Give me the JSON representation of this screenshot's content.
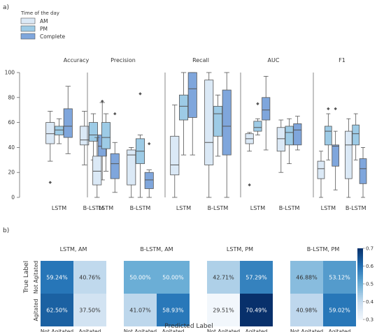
{
  "panel_labels": {
    "a": "a)",
    "b": "b)"
  },
  "legend": {
    "title": "Time of the day",
    "items": [
      {
        "label": "AM",
        "color": "#dbe9f6"
      },
      {
        "label": "PM",
        "color": "#9dcbe6"
      },
      {
        "label": "Complete",
        "color": "#7fa6dc"
      }
    ]
  },
  "chart_data": [
    {
      "type": "box",
      "ylim": [
        0,
        100
      ],
      "yticks": [
        "0",
        "20",
        "40",
        "60",
        "80",
        "100"
      ],
      "xtick_labels": [
        "LSTM",
        "B-LSTM"
      ],
      "series_names": [
        "AM",
        "PM",
        "Complete"
      ],
      "panels": [
        {
          "title": "Accuracy",
          "groups": [
            {
              "label": "LSTM",
              "boxes": [
                {
                  "min": 29,
                  "q1": 43,
                  "median": 51,
                  "q3": 60,
                  "max": 69,
                  "outliers": [
                    12
                  ]
                },
                {
                  "min": 43,
                  "q1": 50,
                  "median": 54,
                  "q3": 57,
                  "max": 63,
                  "outliers": []
                },
                {
                  "min": 35,
                  "q1": 48,
                  "median": 57,
                  "q3": 71,
                  "max": 89,
                  "outliers": []
                }
              ]
            },
            {
              "label": "B-LSTM",
              "boxes": [
                {
                  "min": 26,
                  "q1": 42,
                  "median": 46,
                  "q3": 57,
                  "max": 69,
                  "outliers": []
                },
                {
                  "min": 30,
                  "q1": 45,
                  "median": 50,
                  "q3": 60,
                  "max": 67,
                  "outliers": []
                },
                {
                  "min": 14,
                  "q1": 33,
                  "median": 41,
                  "q3": 50,
                  "max": 76,
                  "outliers": [
                    77
                  ]
                }
              ]
            }
          ]
        },
        {
          "title": "Precision",
          "groups": [
            {
              "label": "LSTM",
              "boxes": [
                {
                  "min": 0,
                  "q1": 10,
                  "median": 21,
                  "q3": 33,
                  "max": 48,
                  "outliers": []
                },
                {
                  "min": 21,
                  "q1": 39,
                  "median": 48,
                  "q3": 60,
                  "max": 67,
                  "outliers": []
                },
                {
                  "min": 4,
                  "q1": 15,
                  "median": 27,
                  "q3": 35,
                  "max": 44,
                  "outliers": [
                    67
                  ]
                }
              ]
            },
            {
              "label": "B-LSTM",
              "boxes": [
                {
                  "min": 0,
                  "q1": 10,
                  "median": 34,
                  "q3": 38,
                  "max": 40,
                  "outliers": []
                },
                {
                  "min": 0,
                  "q1": 27,
                  "median": 37,
                  "q3": 47,
                  "max": 50,
                  "outliers": [
                    83
                  ]
                },
                {
                  "min": 0,
                  "q1": 7,
                  "median": 14,
                  "q3": 20,
                  "max": 22,
                  "outliers": [
                    43
                  ]
                }
              ]
            }
          ]
        },
        {
          "title": "Recall",
          "groups": [
            {
              "label": "LSTM",
              "boxes": [
                {
                  "min": 0,
                  "q1": 18,
                  "median": 26,
                  "q3": 49,
                  "max": 74,
                  "outliers": []
                },
                {
                  "min": 34,
                  "q1": 62,
                  "median": 73,
                  "q3": 82,
                  "max": 100,
                  "outliers": []
                },
                {
                  "min": 34,
                  "q1": 64,
                  "median": 87,
                  "q3": 100,
                  "max": 100,
                  "outliers": []
                }
              ]
            },
            {
              "label": "B-LSTM",
              "boxes": [
                {
                  "min": 0,
                  "q1": 26,
                  "median": 44,
                  "q3": 94,
                  "max": 100,
                  "outliers": []
                },
                {
                  "min": 33,
                  "q1": 49,
                  "median": 67,
                  "q3": 73,
                  "max": 82,
                  "outliers": []
                },
                {
                  "min": 0,
                  "q1": 34,
                  "median": 57,
                  "q3": 86,
                  "max": 100,
                  "outliers": []
                }
              ]
            }
          ]
        },
        {
          "title": "AUC",
          "groups": [
            {
              "label": "LSTM",
              "boxes": [
                {
                  "min": 37,
                  "q1": 43,
                  "median": 47,
                  "q3": 51,
                  "max": 52,
                  "outliers": [
                    10
                  ]
                },
                {
                  "min": 50,
                  "q1": 53,
                  "median": 56,
                  "q3": 61,
                  "max": 63,
                  "outliers": [
                    75
                  ]
                },
                {
                  "min": 38,
                  "q1": 62,
                  "median": 70,
                  "q3": 80,
                  "max": 97,
                  "outliers": []
                }
              ]
            },
            {
              "label": "B-LSTM",
              "boxes": [
                {
                  "min": 20,
                  "q1": 37,
                  "median": 47,
                  "q3": 56,
                  "max": 62,
                  "outliers": []
                },
                {
                  "min": 27,
                  "q1": 42,
                  "median": 52,
                  "q3": 57,
                  "max": 63,
                  "outliers": []
                },
                {
                  "min": 38,
                  "q1": 42,
                  "median": 54,
                  "q3": 59,
                  "max": 65,
                  "outliers": []
                }
              ]
            }
          ]
        },
        {
          "title": "F1",
          "groups": [
            {
              "label": "LSTM",
              "boxes": [
                {
                  "min": 0,
                  "q1": 15,
                  "median": 23,
                  "q3": 29,
                  "max": 37,
                  "outliers": []
                },
                {
                  "min": 30,
                  "q1": 42,
                  "median": 53,
                  "q3": 57,
                  "max": 67,
                  "outliers": [
                    71
                  ]
                },
                {
                  "min": 6,
                  "q1": 25,
                  "median": 41,
                  "q3": 42,
                  "max": 53,
                  "outliers": [
                    71
                  ]
                }
              ]
            },
            {
              "label": "B-LSTM",
              "boxes": [
                {
                  "min": 0,
                  "q1": 15,
                  "median": 42,
                  "q3": 53,
                  "max": 63,
                  "outliers": []
                },
                {
                  "min": 30,
                  "q1": 42,
                  "median": 51,
                  "q3": 58,
                  "max": 67,
                  "outliers": []
                },
                {
                  "min": 0,
                  "q1": 11,
                  "median": 23,
                  "q3": 31,
                  "max": 40,
                  "outliers": []
                }
              ]
            }
          ]
        }
      ]
    },
    {
      "type": "heatmap",
      "ylabel": "True Label",
      "xlabel": "Predicted Label",
      "row_labels": [
        "Not Agitated",
        "Agitated"
      ],
      "col_labels": [
        "Not Agitated",
        "Agitated"
      ],
      "colorbar": {
        "min": 0.3,
        "max": 0.7,
        "ticks": [
          "0.7",
          "0.6",
          "0.5",
          "0.4",
          "0.3"
        ]
      },
      "matrices": [
        {
          "title": "LSTM, AM",
          "values": [
            [
              0.5924,
              0.4076
            ],
            [
              0.625,
              0.375
            ]
          ],
          "labels": [
            [
              "59.24%",
              "40.76%"
            ],
            [
              "62.50%",
              "37.50%"
            ]
          ]
        },
        {
          "title": "B-LSTM, AM",
          "values": [
            [
              0.5,
              0.5
            ],
            [
              0.4107,
              0.5893
            ]
          ],
          "labels": [
            [
              "50.00%",
              "50.00%"
            ],
            [
              "41.07%",
              "58.93%"
            ]
          ]
        },
        {
          "title": "LSTM, PM",
          "values": [
            [
              0.4271,
              0.5729
            ],
            [
              0.2951,
              0.7049
            ]
          ],
          "labels": [
            [
              "42.71%",
              "57.29%"
            ],
            [
              "29.51%",
              "70.49%"
            ]
          ]
        },
        {
          "title": "B-LSTM, PM",
          "values": [
            [
              0.4688,
              0.5312
            ],
            [
              0.4098,
              0.5902
            ]
          ],
          "labels": [
            [
              "46.88%",
              "53.12%"
            ],
            [
              "40.98%",
              "59.02%"
            ]
          ]
        }
      ]
    }
  ]
}
